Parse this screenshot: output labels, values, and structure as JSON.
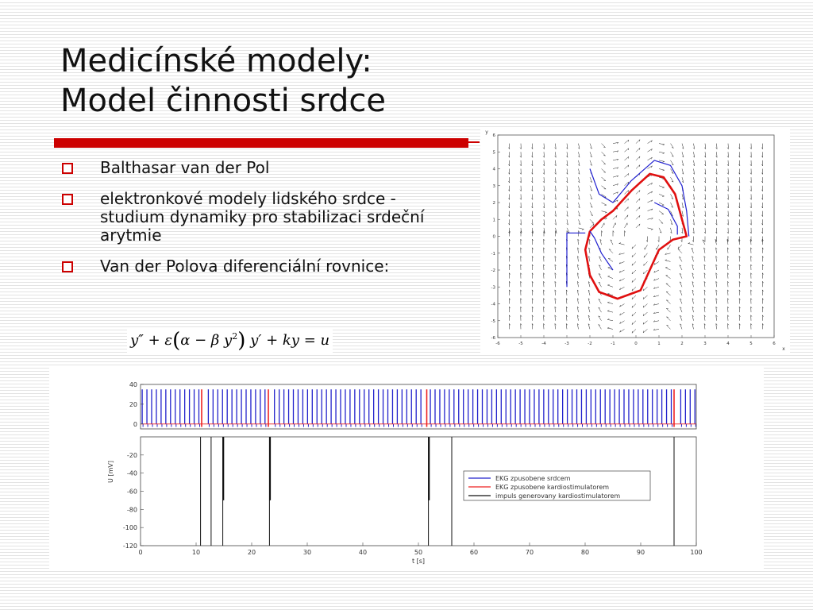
{
  "slide": {
    "title_line1": "Medicínské modely:",
    "title_line2": "Model činnosti srdce",
    "bullets": [
      "Balthasar van der Pol",
      "elektronkové modely lidského srdce - studium dynamiky pro stabilizaci srdeční arytmie",
      "Van der Polova diferenciální rovnice:"
    ],
    "equation": {
      "lhs_prefix": "y″ + ε",
      "inner": "α − β y",
      "power": "2",
      "rest": "y′ + ky = u"
    },
    "colors": {
      "accent": "#cc0000",
      "bullet_marker": "#cc0000"
    }
  },
  "chart_data": [
    {
      "type": "scatter",
      "title": "",
      "xlabel": "x",
      "ylabel": "y",
      "xlim": [
        -6,
        6
      ],
      "ylim": [
        -6,
        6
      ],
      "xticks": [
        -6,
        -5,
        -4,
        -3,
        -2,
        -1,
        0,
        1,
        2,
        3,
        4,
        5,
        6
      ],
      "yticks": [
        -6,
        -5,
        -4,
        -3,
        -2,
        -1,
        0,
        1,
        2,
        3,
        4,
        5,
        6
      ],
      "grid": false,
      "vector_field": true,
      "series": [
        {
          "color": "#e01010",
          "style": "limit-cycle",
          "points": [
            [
              -2.0,
              0.3
            ],
            [
              -1.5,
              1.0
            ],
            [
              -1.0,
              1.5
            ],
            [
              -0.2,
              2.7
            ],
            [
              0.6,
              3.7
            ],
            [
              1.2,
              3.5
            ],
            [
              1.7,
              2.5
            ],
            [
              2.0,
              1.0
            ],
            [
              2.2,
              0.0
            ],
            [
              1.6,
              -0.2
            ],
            [
              1.0,
              -0.8
            ],
            [
              0.6,
              -2.0
            ],
            [
              0.2,
              -3.2
            ],
            [
              -0.8,
              -3.7
            ],
            [
              -1.6,
              -3.3
            ],
            [
              -2.0,
              -2.3
            ],
            [
              -2.2,
              -0.8
            ],
            [
              -2.0,
              0.3
            ]
          ]
        },
        {
          "color": "#2020d0",
          "style": "trajectory",
          "points": [
            [
              -2.0,
              4.0
            ],
            [
              -1.6,
              2.5
            ],
            [
              -1.0,
              2.0
            ],
            [
              -0.2,
              3.3
            ],
            [
              0.8,
              4.5
            ],
            [
              1.5,
              4.2
            ],
            [
              2.0,
              3.0
            ],
            [
              2.2,
              1.5
            ],
            [
              2.3,
              0.0
            ]
          ]
        },
        {
          "color": "#2020d0",
          "style": "trajectory",
          "points": [
            [
              -3.0,
              -3.0
            ],
            [
              -3.0,
              -1.2
            ],
            [
              -3.0,
              0.2
            ],
            [
              -2.2,
              0.2
            ]
          ]
        },
        {
          "color": "#2020d0",
          "style": "trajectory",
          "points": [
            [
              -1.0,
              -2.0
            ],
            [
              -1.5,
              -1.0
            ],
            [
              -1.8,
              -0.1
            ],
            [
              -2.0,
              0.3
            ]
          ]
        },
        {
          "color": "#2020d0",
          "style": "trajectory",
          "points": [
            [
              0.8,
              2.0
            ],
            [
              1.4,
              1.6
            ],
            [
              1.8,
              0.6
            ],
            [
              1.8,
              0.1
            ]
          ]
        }
      ]
    },
    {
      "type": "line",
      "title": "",
      "xlabel": "t [s]",
      "ylabel": "U [mV]",
      "xlim": [
        0,
        100
      ],
      "xticks": [
        0,
        10,
        20,
        30,
        40,
        50,
        60,
        70,
        80,
        90,
        100
      ],
      "top_ylim": [
        -5,
        40
      ],
      "top_yticks": [
        0,
        20,
        40
      ],
      "bottom_ylim": [
        -120,
        0
      ],
      "bottom_yticks": [
        -20,
        -40,
        -60,
        -80,
        -100,
        -120
      ],
      "legend_position": "center-right",
      "series": [
        {
          "name": "EKG zpusobene srdcem",
          "color": "#2222cc",
          "beat_interval_s": 0.85,
          "amplitude_mV": 35
        },
        {
          "name": "EKG zpusobene kardiostimulatorem",
          "color": "#ee2222",
          "spike_times_s": [
            11.0,
            23.0,
            51.5,
            96.0
          ],
          "amplitude_mV": 35
        },
        {
          "name": "impuls generovany kardiostimulatorem",
          "color": "#111111",
          "pulses": [
            {
              "t": 10.8,
              "min_mV": -120
            },
            {
              "t": 12.7,
              "min_mV": -120
            },
            {
              "t": 14.8,
              "min_mV": -120
            },
            {
              "t": 14.9,
              "min_mV": -70
            },
            {
              "t": 23.2,
              "min_mV": -120
            },
            {
              "t": 23.3,
              "min_mV": -70
            },
            {
              "t": 51.8,
              "min_mV": -120
            },
            {
              "t": 51.9,
              "min_mV": -70
            },
            {
              "t": 56.0,
              "min_mV": -120
            },
            {
              "t": 96.0,
              "min_mV": -120
            }
          ]
        }
      ]
    }
  ]
}
